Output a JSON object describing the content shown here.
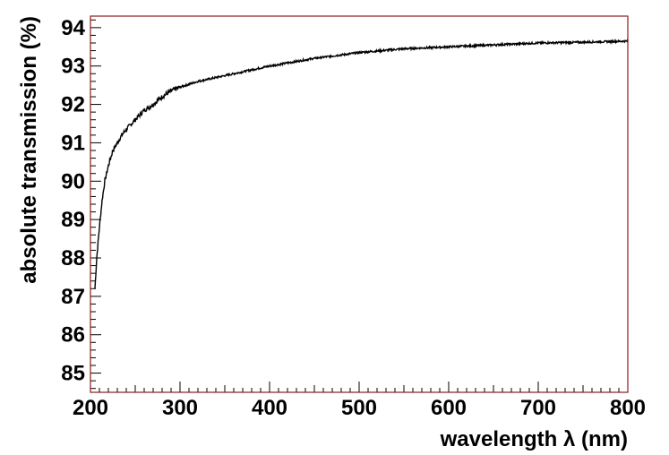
{
  "chart_data": {
    "type": "line",
    "title": "",
    "xlabel": "wavelength λ (nm)",
    "ylabel": "absolute transmission (%)",
    "xlim": [
      200,
      800
    ],
    "ylim": [
      84.5,
      94.3
    ],
    "x_ticks": [
      200,
      300,
      400,
      500,
      600,
      700,
      800
    ],
    "y_ticks": [
      85,
      86,
      87,
      88,
      89,
      90,
      91,
      92,
      93,
      94
    ],
    "grid": false,
    "legend": "none",
    "frame_color": "#8b1a1a",
    "line_color": "#000000",
    "series": [
      {
        "x": [
          205,
          207,
          210,
          213,
          216,
          220,
          225,
          230,
          235,
          240,
          250,
          260,
          270,
          280,
          290,
          300,
          320,
          350,
          380,
          400,
          450,
          500,
          550,
          600,
          650,
          700,
          750,
          800
        ],
        "y": [
          87.2,
          88.0,
          88.8,
          89.5,
          90.0,
          90.4,
          90.8,
          91.0,
          91.2,
          91.35,
          91.6,
          91.85,
          92.0,
          92.2,
          92.35,
          92.45,
          92.6,
          92.75,
          92.9,
          93.0,
          93.2,
          93.35,
          93.45,
          93.5,
          93.55,
          93.6,
          93.62,
          93.65
        ]
      }
    ]
  }
}
